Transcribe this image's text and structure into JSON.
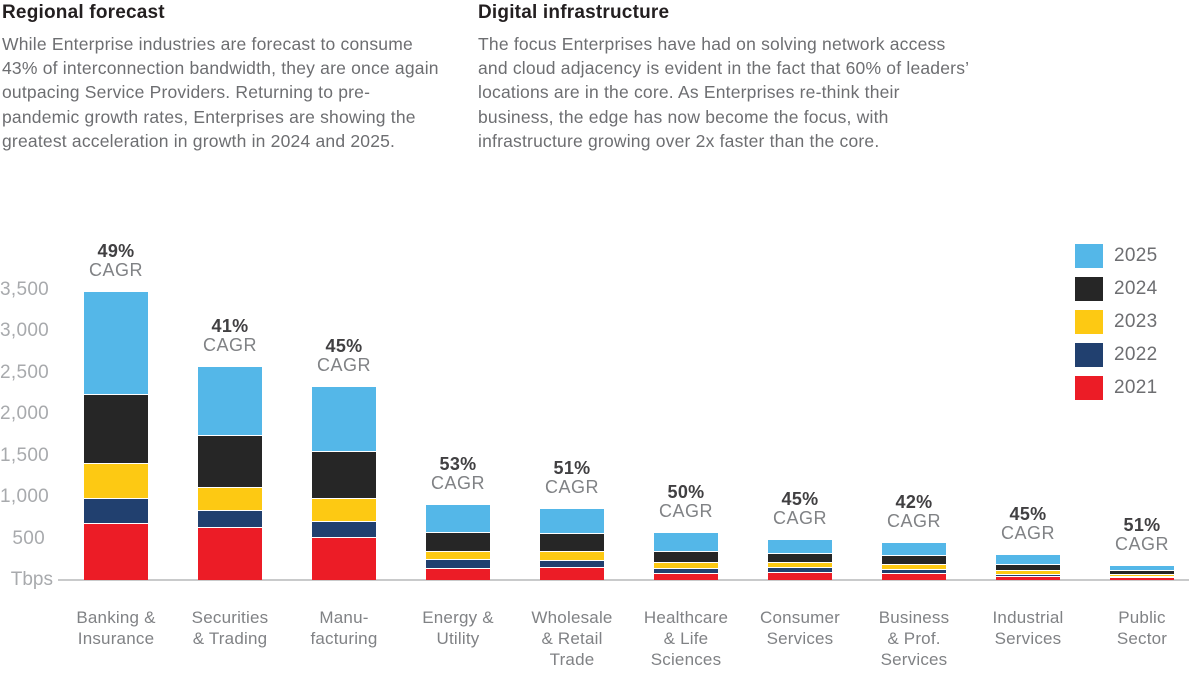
{
  "header": {
    "columns": [
      {
        "title": "Regional forecast",
        "body": "While Enterprise industries are forecast to consume 43% of interconnection bandwidth, they are once again outpacing Service Providers. Returning to pre-pandemic growth rates, Enterprises are showing the greatest acceleration in growth in 2024 and 2025."
      },
      {
        "title": "Digital infrastructure",
        "body": "The focus Enterprises have had on solving network access and cloud adjacency is evident in the fact that 60% of leaders’ locations are in the core.  As Enterprises re-think their business, the edge has now become the focus, with infrastructure growing over 2x faster than the core."
      }
    ]
  },
  "chart_data": {
    "type": "bar",
    "stacked": true,
    "title": "",
    "unit_label": "Tbps",
    "ylabel": "",
    "xlabel": "",
    "ylim": [
      0,
      3500
    ],
    "ytick_values": [
      3500,
      3000,
      2500,
      2000,
      1500,
      1000,
      500
    ],
    "ytick_labels": [
      "3,500",
      "3,000",
      "2,500",
      "2,000",
      "1,500",
      "1,000",
      "500"
    ],
    "grid": false,
    "cagr_word": "CAGR",
    "categories": [
      {
        "label": "Banking & Insurance",
        "lines": [
          "Banking &",
          "Insurance"
        ],
        "cagr": "49%"
      },
      {
        "label": "Securities & Trading",
        "lines": [
          "Securities",
          "& Trading"
        ],
        "cagr": "41%"
      },
      {
        "label": "Manufacturing",
        "lines": [
          "Manu-",
          "facturing"
        ],
        "cagr": "45%"
      },
      {
        "label": "Energy & Utility",
        "lines": [
          "Energy &",
          "Utility"
        ],
        "cagr": "53%"
      },
      {
        "label": "Wholesale & Retail Trade",
        "lines": [
          "Wholesale",
          "& Retail",
          "Trade"
        ],
        "cagr": "51%"
      },
      {
        "label": "Healthcare & Life Sciences",
        "lines": [
          "Healthcare",
          "& Life",
          "Sciences"
        ],
        "cagr": "50%"
      },
      {
        "label": "Consumer Services",
        "lines": [
          "Consumer",
          "Services"
        ],
        "cagr": "45%"
      },
      {
        "label": "Business & Prof. Services",
        "lines": [
          "Business",
          "& Prof.",
          "Services"
        ],
        "cagr": "42%"
      },
      {
        "label": "Industrial Services",
        "lines": [
          "Industrial",
          "Services"
        ],
        "cagr": "45%"
      },
      {
        "label": "Public Sector",
        "lines": [
          "Public",
          "Sector"
        ],
        "cagr": "51%"
      }
    ],
    "series": [
      {
        "name": "2021",
        "color": "#EC1C26",
        "values": [
          690,
          640,
          520,
          150,
          160,
          90,
          93,
          88,
          48,
          33
        ]
      },
      {
        "name": "2022",
        "color": "#21406F",
        "values": [
          300,
          210,
          195,
          100,
          85,
          57,
          60,
          45,
          28,
          19
        ]
      },
      {
        "name": "2023",
        "color": "#FDC913",
        "values": [
          420,
          270,
          270,
          95,
          110,
          73,
          60,
          57,
          49,
          24
        ]
      },
      {
        "name": "2024",
        "color": "#262626",
        "values": [
          840,
          630,
          570,
          240,
          210,
          130,
          110,
          109,
          65,
          45
        ]
      },
      {
        "name": "2025",
        "color": "#54B7E8",
        "values": [
          1230,
          820,
          780,
          315,
          290,
          215,
          165,
          153,
          109,
          49
        ]
      }
    ],
    "totals": [
      3480,
      2570,
      2335,
      900,
      855,
      565,
      488,
      452,
      299,
      170
    ],
    "legend": {
      "position": "top-right",
      "entries": [
        {
          "label": "2025",
          "color": "#54B7E8"
        },
        {
          "label": "2024",
          "color": "#262626"
        },
        {
          "label": "2023",
          "color": "#FDC913"
        },
        {
          "label": "2022",
          "color": "#21406F"
        },
        {
          "label": "2021",
          "color": "#EC1C26"
        }
      ]
    }
  },
  "colors": {
    "heading_text": "#231F20",
    "body_text": "#6D6E71",
    "axis_text": "#A8AAAD",
    "category_text": "#808285",
    "cagr_pct_text": "#414042",
    "cagr_word_text": "#808285",
    "baseline": "#C9CACB",
    "background": "#FFFFFF"
  }
}
